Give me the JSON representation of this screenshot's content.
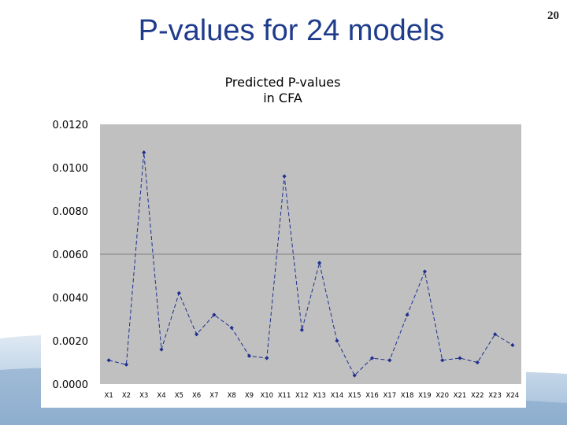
{
  "slide": {
    "title": "P-values for 24 models",
    "page_number": "20"
  },
  "colors": {
    "title": "#1f3c8c",
    "plot_background": "#c0c0c0",
    "series_line": "#1f2f8f",
    "reference_line": "#808080"
  },
  "chart_data": {
    "type": "line",
    "title_lines": [
      "Predicted P-values",
      "in CFA"
    ],
    "categories": [
      "X1",
      "X2",
      "X3",
      "X4",
      "X5",
      "X6",
      "X7",
      "X8",
      "X9",
      "X10",
      "X11",
      "X12",
      "X13",
      "X14",
      "X15",
      "X16",
      "X17",
      "X18",
      "X19",
      "X20",
      "X21",
      "X22",
      "X23",
      "X24"
    ],
    "series": [
      {
        "values": [
          0.0011,
          0.0009,
          0.0107,
          0.0016,
          0.0042,
          0.0023,
          0.0032,
          0.0026,
          0.0013,
          0.0012,
          0.0096,
          0.0025,
          0.0056,
          0.002,
          0.0004,
          0.0012,
          0.0011,
          0.0032,
          0.0052,
          0.0011,
          0.0012,
          0.001,
          0.0023,
          0.0018
        ]
      }
    ],
    "ylim": [
      0,
      0.012
    ],
    "yticks": [
      "0.0000",
      "0.0020",
      "0.0040",
      "0.0060",
      "0.0080",
      "0.0100",
      "0.0120"
    ],
    "reference_line": 0.006,
    "grid": false,
    "legend": "none",
    "line_style": "dashed"
  }
}
